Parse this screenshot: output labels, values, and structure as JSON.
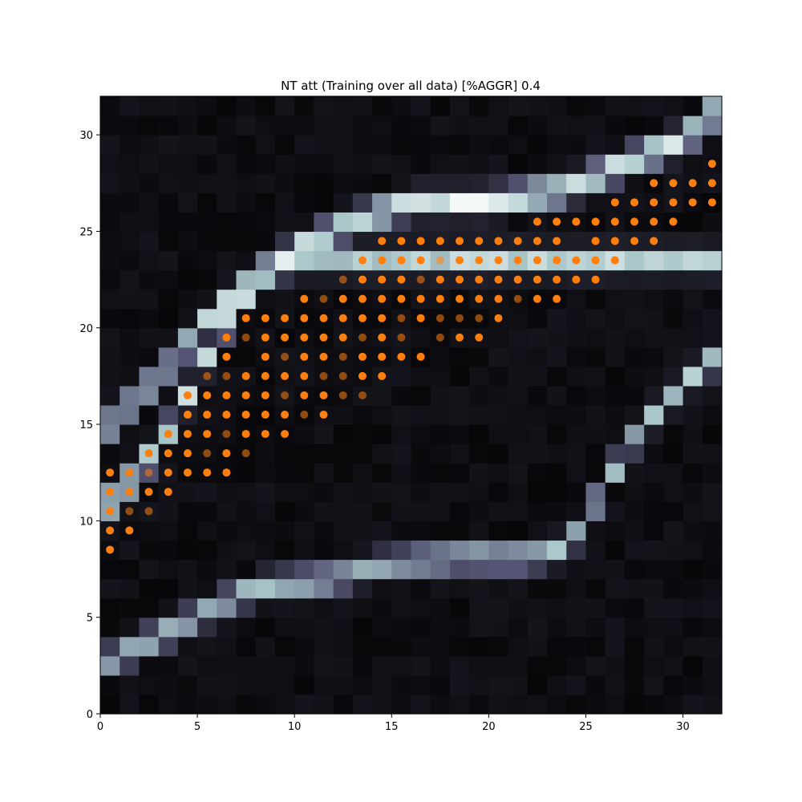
{
  "chart_data": {
    "type": "heatmap",
    "title": "NT att (Training over all data) [%AGGR] 0.4",
    "xlabel": "",
    "ylabel": "",
    "xlim": [
      0,
      32
    ],
    "ylim": [
      0,
      32
    ],
    "x_ticks": [
      0,
      5,
      10,
      15,
      20,
      25,
      30
    ],
    "y_ticks": [
      0,
      5,
      10,
      15,
      20,
      25,
      30
    ],
    "grid": false,
    "colormap": "bone",
    "grid_size": [
      32,
      32
    ],
    "curves_note_values": "cell intensities 0-1",
    "heatmap_bands": [
      {
        "name": "upper-band",
        "points": [
          [
            0,
            10.5
          ],
          [
            2,
            12.5
          ],
          [
            4,
            15.5
          ],
          [
            6,
            19.5
          ],
          [
            8,
            22.5
          ],
          [
            10,
            24
          ],
          [
            13,
            25.5
          ],
          [
            16,
            26.5
          ],
          [
            20,
            26.5
          ],
          [
            24,
            27.2
          ],
          [
            27,
            28.5
          ],
          [
            30,
            29.7
          ],
          [
            32,
            31.5
          ]
        ],
        "peak": 1.0
      },
      {
        "name": "middle-band",
        "points": [
          [
            0,
            14.5
          ],
          [
            2,
            16.5
          ],
          [
            4,
            18.5
          ],
          [
            6,
            21
          ],
          [
            8,
            22.8
          ],
          [
            10,
            23.5
          ]
        ],
        "peak": 0.85
      },
      {
        "name": "lower-curve",
        "points": [
          [
            0,
            2.5
          ],
          [
            2,
            3.5
          ],
          [
            4,
            4.5
          ],
          [
            6,
            5.6
          ],
          [
            8,
            6.5
          ],
          [
            10,
            6.8
          ],
          [
            12,
            7
          ],
          [
            14,
            7.6
          ],
          [
            16,
            7.9
          ],
          [
            18,
            8.1
          ],
          [
            20,
            8.1
          ],
          [
            22,
            8.1
          ],
          [
            24,
            8.6
          ],
          [
            25,
            10
          ],
          [
            26,
            12
          ],
          [
            27,
            13.5
          ],
          [
            28,
            15
          ],
          [
            29,
            16
          ],
          [
            30,
            17
          ],
          [
            31,
            18
          ],
          [
            32,
            18.5
          ]
        ],
        "peak": 0.8
      }
    ],
    "markers": {
      "color": "#ff7f0e",
      "bright_opacity": 1.0,
      "dim_opacity": 0.55,
      "rows": [
        {
          "y": 8.5,
          "x": [
            0.5
          ]
        },
        {
          "y": 9.5,
          "x": [
            0.5,
            1.5
          ]
        },
        {
          "y": 10.5,
          "x": [
            0.5,
            1.5,
            2.5
          ],
          "dim": [
            1.5,
            2.5
          ]
        },
        {
          "y": 11.5,
          "x": [
            0.5,
            1.5,
            2.5,
            3.5
          ]
        },
        {
          "y": 12.5,
          "x": [
            0.5,
            1.5,
            2.5,
            3.5,
            4.5,
            5.5,
            6.5
          ],
          "dim": [
            2.5
          ]
        },
        {
          "y": 13.5,
          "x": [
            2.5,
            3.5,
            4.5,
            5.5,
            6.5,
            7.5
          ],
          "dim": [
            5.5,
            7.5
          ]
        },
        {
          "y": 14.5,
          "x": [
            3.5,
            4.5,
            5.5,
            6.5,
            7.5,
            8.5,
            9.5
          ],
          "dim": [
            6.5
          ]
        },
        {
          "y": 15.5,
          "x": [
            4.5,
            5.5,
            6.5,
            7.5,
            8.5,
            9.5,
            10.5,
            11.5
          ],
          "dim": [
            10.5
          ]
        },
        {
          "y": 16.5,
          "x": [
            4.5,
            5.5,
            6.5,
            7.5,
            8.5,
            9.5,
            10.5,
            11.5,
            12.5,
            13.5
          ],
          "dim": [
            9.5,
            12.5,
            13.5
          ]
        },
        {
          "y": 17.5,
          "x": [
            5.5,
            6.5,
            7.5,
            8.5,
            9.5,
            10.5,
            11.5,
            12.5,
            13.5,
            14.5
          ],
          "dim": [
            5.5,
            6.5,
            11.5,
            12.5
          ]
        },
        {
          "y": 18.5,
          "x": [
            6.5,
            8.5,
            9.5,
            10.5,
            11.5,
            12.5,
            13.5,
            14.5,
            15.5,
            16.5
          ],
          "dim": [
            9.5,
            12.5
          ]
        },
        {
          "y": 19.5,
          "x": [
            6.5,
            7.5,
            8.5,
            9.5,
            10.5,
            11.5,
            12.5,
            13.5,
            14.5,
            15.5,
            17.5,
            18.5,
            19.5
          ],
          "dim": [
            7.5,
            13.5,
            15.5,
            17.5
          ]
        },
        {
          "y": 20.5,
          "x": [
            7.5,
            8.5,
            9.5,
            10.5,
            11.5,
            12.5,
            13.5,
            14.5,
            15.5,
            16.5,
            17.5,
            18.5,
            19.5,
            20.5
          ],
          "dim": [
            15.5,
            17.5,
            18.5,
            19.5
          ]
        },
        {
          "y": 21.5,
          "x": [
            10.5,
            11.5,
            12.5,
            13.5,
            14.5,
            15.5,
            16.5,
            17.5,
            18.5,
            19.5,
            20.5,
            21.5,
            22.5,
            23.5
          ],
          "dim": [
            11.5,
            21.5
          ]
        },
        {
          "y": 22.5,
          "x": [
            12.5,
            13.5,
            14.5,
            15.5,
            16.5,
            17.5,
            18.5,
            19.5,
            20.5,
            21.5,
            22.5,
            23.5,
            24.5,
            25.5
          ],
          "dim": [
            12.5,
            16.5
          ]
        },
        {
          "y": 23.5,
          "x": [
            13.5,
            14.5,
            15.5,
            16.5,
            17.5,
            18.5,
            19.5,
            20.5,
            21.5,
            22.5,
            23.5,
            24.5,
            25.5,
            26.5
          ],
          "dim": [
            17.5
          ]
        },
        {
          "y": 24.5,
          "x": [
            14.5,
            15.5,
            16.5,
            17.5,
            18.5,
            19.5,
            20.5,
            21.5,
            22.5,
            23.5,
            25.5,
            26.5,
            27.5,
            28.5
          ]
        },
        {
          "y": 25.5,
          "x": [
            22.5,
            23.5,
            24.5,
            25.5,
            26.5,
            27.5,
            28.5,
            29.5
          ]
        },
        {
          "y": 26.5,
          "x": [
            26.5,
            27.5,
            28.5,
            29.5,
            30.5,
            31.5
          ]
        },
        {
          "y": 27.5,
          "x": [
            28.5,
            29.5,
            30.5,
            31.5
          ]
        },
        {
          "y": 28.5,
          "x": [
            31.5
          ]
        }
      ]
    }
  }
}
